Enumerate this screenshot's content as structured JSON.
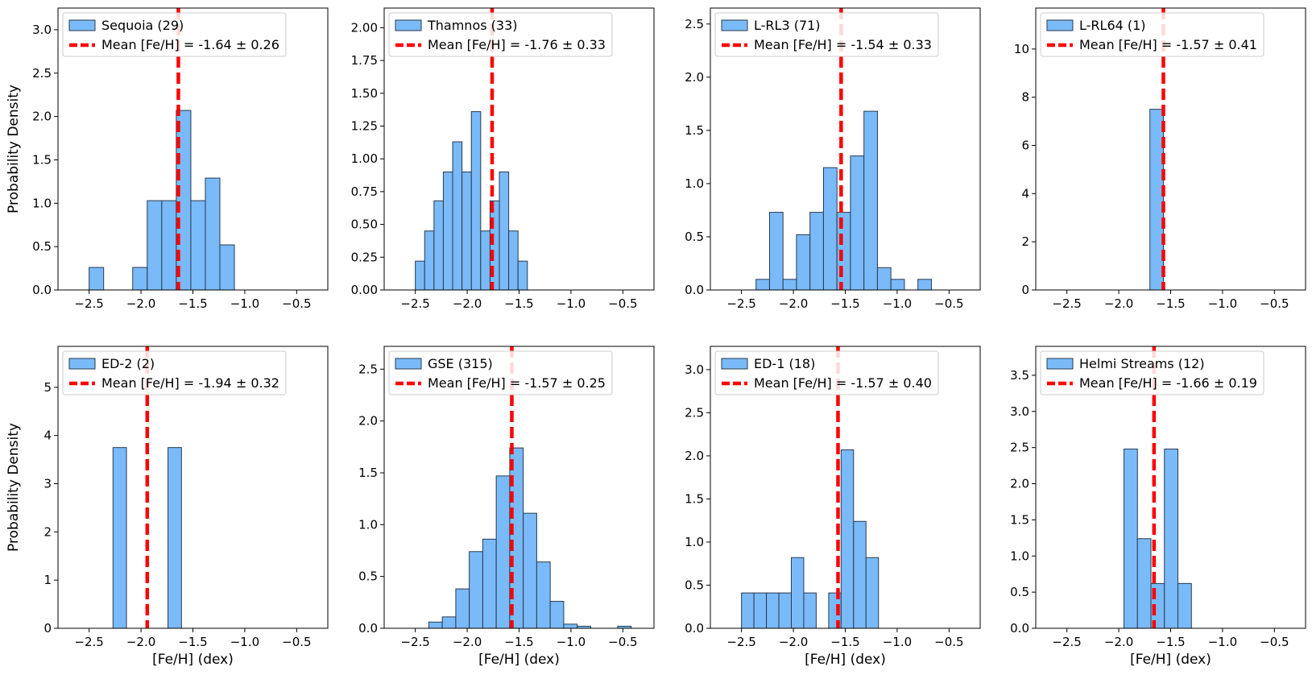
{
  "chart_data": [
    {
      "type": "bar",
      "title": "",
      "legend": {
        "hist_label": "Sequoia (29)",
        "mean_label": "Mean [Fe/H] = -1.64 ± 0.26",
        "placement": "upper-left"
      },
      "xlabel": "",
      "ylabel": "Probability Density",
      "xlim": [
        -2.8,
        -0.2
      ],
      "ylim": [
        0,
        3.25
      ],
      "xticks": [
        -2.5,
        -2.0,
        -1.5,
        -1.0,
        -0.5
      ],
      "xtick_labels": [
        "−2.5",
        "−2.0",
        "−1.5",
        "−1.0",
        "−0.5"
      ],
      "yticks": [
        0,
        0.5,
        1.0,
        1.5,
        2.0,
        2.5,
        3.0
      ],
      "ytick_labels": [
        "0.0",
        "0.5",
        "1.0",
        "1.5",
        "2.0",
        "2.5",
        "3.0"
      ],
      "bins": [
        [
          -2.5,
          -2.36,
          0.26
        ],
        [
          -2.36,
          -2.22,
          0
        ],
        [
          -2.22,
          -2.08,
          0
        ],
        [
          -2.08,
          -1.94,
          0.26
        ],
        [
          -1.94,
          -1.8,
          1.03
        ],
        [
          -1.8,
          -1.66,
          1.03
        ],
        [
          -1.66,
          -1.52,
          2.07
        ],
        [
          -1.52,
          -1.38,
          1.03
        ],
        [
          -1.38,
          -1.24,
          1.29
        ],
        [
          -1.24,
          -1.1,
          0.52
        ]
      ],
      "mean": -1.64
    },
    {
      "type": "bar",
      "title": "",
      "legend": {
        "hist_label": "Thamnos (33)",
        "mean_label": "Mean [Fe/H] = -1.76 ± 0.33",
        "placement": "upper-left"
      },
      "xlabel": "",
      "ylabel": "",
      "xlim": [
        -2.8,
        -0.2
      ],
      "ylim": [
        0,
        2.15
      ],
      "xticks": [
        -2.5,
        -2.0,
        -1.5,
        -1.0,
        -0.5
      ],
      "xtick_labels": [
        "−2.5",
        "−2.0",
        "−1.5",
        "−1.0",
        "−0.5"
      ],
      "yticks": [
        0,
        0.25,
        0.5,
        0.75,
        1.0,
        1.25,
        1.5,
        1.75,
        2.0
      ],
      "ytick_labels": [
        "0.00",
        "0.25",
        "0.50",
        "0.75",
        "1.00",
        "1.25",
        "1.50",
        "1.75",
        "2.00"
      ],
      "bins": [
        [
          -2.5,
          -2.41,
          0.22
        ],
        [
          -2.41,
          -2.32,
          0.45
        ],
        [
          -2.32,
          -2.23,
          0.68
        ],
        [
          -2.23,
          -2.14,
          0.9
        ],
        [
          -2.14,
          -2.05,
          1.13
        ],
        [
          -2.05,
          -1.96,
          0.9
        ],
        [
          -1.96,
          -1.87,
          1.36
        ],
        [
          -1.87,
          -1.78,
          0.45
        ],
        [
          -1.78,
          -1.69,
          0.68
        ],
        [
          -1.69,
          -1.6,
          0.9
        ],
        [
          -1.6,
          -1.51,
          0.45
        ],
        [
          -1.51,
          -1.42,
          0.22
        ]
      ],
      "mean": -1.76
    },
    {
      "type": "bar",
      "title": "",
      "legend": {
        "hist_label": "L-RL3 (71)",
        "mean_label": "Mean [Fe/H] = -1.54 ± 0.33",
        "placement": "upper-left"
      },
      "xlabel": "",
      "ylabel": "",
      "xlim": [
        -2.8,
        -0.2
      ],
      "ylim": [
        0,
        2.65
      ],
      "xticks": [
        -2.5,
        -2.0,
        -1.5,
        -1.0,
        -0.5
      ],
      "xtick_labels": [
        "−2.5",
        "−2.0",
        "−1.5",
        "−1.0",
        "−0.5"
      ],
      "yticks": [
        0,
        0.5,
        1.0,
        1.5,
        2.0,
        2.5
      ],
      "ytick_labels": [
        "0.0",
        "0.5",
        "1.0",
        "1.5",
        "2.0",
        "2.5"
      ],
      "bins": [
        [
          -2.36,
          -2.23,
          0.1
        ],
        [
          -2.23,
          -2.1,
          0.73
        ],
        [
          -2.1,
          -1.97,
          0.1
        ],
        [
          -1.97,
          -1.84,
          0.52
        ],
        [
          -1.84,
          -1.71,
          0.73
        ],
        [
          -1.71,
          -1.58,
          1.15
        ],
        [
          -1.58,
          -1.45,
          0.73
        ],
        [
          -1.45,
          -1.32,
          1.26
        ],
        [
          -1.32,
          -1.19,
          1.68
        ],
        [
          -1.19,
          -1.06,
          0.21
        ],
        [
          -1.06,
          -0.93,
          0.1
        ],
        [
          -0.93,
          -0.8,
          0
        ],
        [
          -0.8,
          -0.67,
          0.1
        ]
      ],
      "mean": -1.54
    },
    {
      "type": "bar",
      "title": "",
      "legend": {
        "hist_label": "L-RL64 (1)",
        "mean_label": "Mean [Fe/H] = -1.57 ± 0.41",
        "placement": "upper-left"
      },
      "xlabel": "",
      "ylabel": "",
      "xlim": [
        -2.8,
        -0.2
      ],
      "ylim": [
        0,
        11.7
      ],
      "xticks": [
        -2.5,
        -2.0,
        -1.5,
        -1.0,
        -0.5
      ],
      "xtick_labels": [
        "−2.5",
        "−2.0",
        "−1.5",
        "−1.0",
        "−0.5"
      ],
      "yticks": [
        0,
        2,
        4,
        6,
        8,
        10
      ],
      "ytick_labels": [
        "0",
        "2",
        "4",
        "6",
        "8",
        "10"
      ],
      "bins": [
        [
          -1.7,
          -1.57,
          7.5
        ]
      ],
      "mean": -1.57
    },
    {
      "type": "bar",
      "title": "",
      "legend": {
        "hist_label": "ED-2 (2)",
        "mean_label": "Mean [Fe/H] = -1.94 ± 0.32",
        "placement": "upper-left"
      },
      "xlabel": "[Fe/H] (dex)",
      "ylabel": "Probability Density",
      "xlim": [
        -2.8,
        -0.2
      ],
      "ylim": [
        0,
        5.85
      ],
      "xticks": [
        -2.5,
        -2.0,
        -1.5,
        -1.0,
        -0.5
      ],
      "xtick_labels": [
        "−2.5",
        "−2.0",
        "−1.5",
        "−1.0",
        "−0.5"
      ],
      "yticks": [
        0,
        1,
        2,
        3,
        4,
        5
      ],
      "ytick_labels": [
        "0",
        "1",
        "2",
        "3",
        "4",
        "5"
      ],
      "bins": [
        [
          -2.27,
          -2.14,
          3.75
        ],
        [
          -1.74,
          -1.61,
          3.75
        ]
      ],
      "mean": -1.94
    },
    {
      "type": "bar",
      "title": "",
      "legend": {
        "hist_label": "GSE (315)",
        "mean_label": "Mean [Fe/H] = -1.57 ± 0.25",
        "placement": "upper-left"
      },
      "xlabel": "[Fe/H] (dex)",
      "ylabel": "",
      "xlim": [
        -2.8,
        -0.2
      ],
      "ylim": [
        0,
        2.72
      ],
      "xticks": [
        -2.5,
        -2.0,
        -1.5,
        -1.0,
        -0.5
      ],
      "xtick_labels": [
        "−2.5",
        "−2.0",
        "−1.5",
        "−1.0",
        "−0.5"
      ],
      "yticks": [
        0,
        0.5,
        1.0,
        1.5,
        2.0,
        2.5
      ],
      "ytick_labels": [
        "0.0",
        "0.5",
        "1.0",
        "1.5",
        "2.0",
        "2.5"
      ],
      "bins": [
        [
          -2.37,
          -2.24,
          0.06
        ],
        [
          -2.24,
          -2.11,
          0.11
        ],
        [
          -2.11,
          -1.98,
          0.38
        ],
        [
          -1.98,
          -1.85,
          0.74
        ],
        [
          -1.85,
          -1.72,
          0.86
        ],
        [
          -1.72,
          -1.59,
          1.47
        ],
        [
          -1.59,
          -1.46,
          1.74
        ],
        [
          -1.46,
          -1.33,
          1.11
        ],
        [
          -1.33,
          -1.2,
          0.64
        ],
        [
          -1.2,
          -1.07,
          0.26
        ],
        [
          -1.07,
          -0.94,
          0.04
        ],
        [
          -0.94,
          -0.81,
          0.02
        ],
        [
          -0.81,
          -0.68,
          0
        ],
        [
          -0.68,
          -0.55,
          0
        ],
        [
          -0.55,
          -0.42,
          0.02
        ]
      ],
      "mean": -1.57
    },
    {
      "type": "bar",
      "title": "",
      "legend": {
        "hist_label": "ED-1 (18)",
        "mean_label": "Mean [Fe/H] = -1.57 ± 0.40",
        "placement": "upper-left"
      },
      "xlabel": "[Fe/H] (dex)",
      "ylabel": "",
      "xlim": [
        -2.8,
        -0.2
      ],
      "ylim": [
        0,
        3.27
      ],
      "xticks": [
        -2.5,
        -2.0,
        -1.5,
        -1.0,
        -0.5
      ],
      "xtick_labels": [
        "−2.5",
        "−2.0",
        "−1.5",
        "−1.0",
        "−0.5"
      ],
      "yticks": [
        0,
        0.5,
        1.0,
        1.5,
        2.0,
        2.5,
        3.0
      ],
      "ytick_labels": [
        "0.0",
        "0.5",
        "1.0",
        "1.5",
        "2.0",
        "2.5",
        "3.0"
      ],
      "bins": [
        [
          -2.5,
          -2.38,
          0.41
        ],
        [
          -2.38,
          -2.26,
          0.41
        ],
        [
          -2.26,
          -2.14,
          0.41
        ],
        [
          -2.14,
          -2.02,
          0.41
        ],
        [
          -2.02,
          -1.9,
          0.82
        ],
        [
          -1.9,
          -1.78,
          0.41
        ],
        [
          -1.78,
          -1.66,
          0
        ],
        [
          -1.66,
          -1.54,
          0.41
        ],
        [
          -1.54,
          -1.42,
          2.07
        ],
        [
          -1.42,
          -1.3,
          1.24
        ],
        [
          -1.3,
          -1.18,
          0.82
        ]
      ],
      "mean": -1.57
    },
    {
      "type": "bar",
      "title": "",
      "legend": {
        "hist_label": "Helmi Streams (12)",
        "mean_label": "Mean [Fe/H] = -1.66 ± 0.19",
        "placement": "upper-left"
      },
      "xlabel": "[Fe/H] (dex)",
      "ylabel": "",
      "xlim": [
        -2.8,
        -0.2
      ],
      "ylim": [
        0,
        3.9
      ],
      "xticks": [
        -2.5,
        -2.0,
        -1.5,
        -1.0,
        -0.5
      ],
      "xtick_labels": [
        "−2.5",
        "−2.0",
        "−1.5",
        "−1.0",
        "−0.5"
      ],
      "yticks": [
        0,
        0.5,
        1.0,
        1.5,
        2.0,
        2.5,
        3.0,
        3.5
      ],
      "ytick_labels": [
        "0.0",
        "0.5",
        "1.0",
        "1.5",
        "2.0",
        "2.5",
        "3.0",
        "3.5"
      ],
      "bins": [
        [
          -1.95,
          -1.82,
          2.48
        ],
        [
          -1.82,
          -1.69,
          1.24
        ],
        [
          -1.69,
          -1.56,
          0.62
        ],
        [
          -1.56,
          -1.43,
          2.48
        ],
        [
          -1.43,
          -1.3,
          0.62
        ]
      ],
      "mean": -1.66
    }
  ],
  "colors": {
    "bar_fill": "#7ABAF8",
    "bar_edge": "#2A3A4D",
    "mean_line": "#FF0000",
    "axis": "#000000",
    "legend_border": "#CCCCCC"
  }
}
